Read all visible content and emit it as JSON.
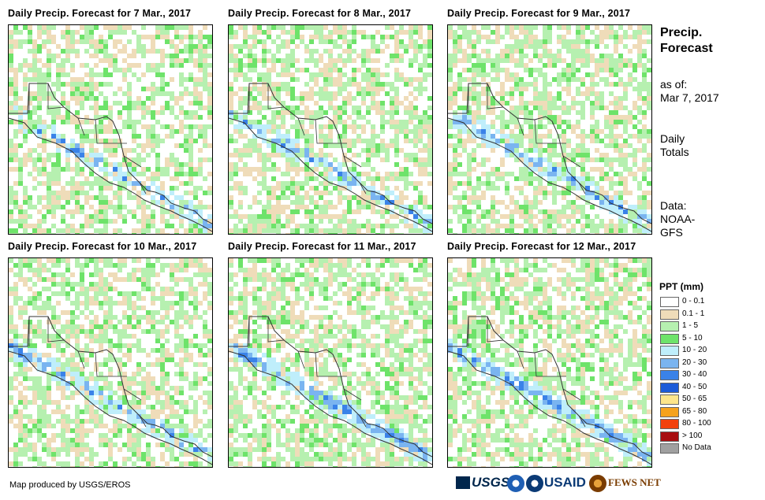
{
  "panels": [
    {
      "title": "Daily Precip. Forecast for 7 Mar., 2017"
    },
    {
      "title": "Daily Precip. Forecast for 8 Mar., 2017"
    },
    {
      "title": "Daily Precip. Forecast for 9 Mar., 2017"
    },
    {
      "title": "Daily Precip. Forecast for 10 Mar., 2017"
    },
    {
      "title": "Daily Precip. Forecast for 11 Mar., 2017"
    },
    {
      "title": "Daily Precip. Forecast for 12 Mar., 2017"
    }
  ],
  "sidebar": {
    "title_line1": "Precip.",
    "title_line2": "Forecast",
    "asof_line1": "as of:",
    "asof_line2": "Mar 7, 2017",
    "totals_line1": "Daily",
    "totals_line2": "Totals",
    "data_line1": "Data:",
    "data_line2": "NOAA-",
    "data_line3": "GFS"
  },
  "legend": {
    "title": "PPT (mm)",
    "items": [
      {
        "label": "0 - 0.1",
        "color": "#ffffff"
      },
      {
        "label": "0.1 - 1",
        "color": "#efdcb9"
      },
      {
        "label": "1 - 5",
        "color": "#b6f0b0"
      },
      {
        "label": "5 - 10",
        "color": "#6ee36a"
      },
      {
        "label": "10 - 20",
        "color": "#bfeefb"
      },
      {
        "label": "20 - 30",
        "color": "#7ab4f0"
      },
      {
        "label": "30 - 40",
        "color": "#3a82e8"
      },
      {
        "label": "40 - 50",
        "color": "#1c5bd8"
      },
      {
        "label": "50 - 65",
        "color": "#fde58a"
      },
      {
        "label": "65 - 80",
        "color": "#f6a21c"
      },
      {
        "label": "80 - 100",
        "color": "#f2400c"
      },
      {
        "label": "> 100",
        "color": "#a80d10"
      },
      {
        "label": "No Data",
        "color": "#a0a0a0"
      }
    ]
  },
  "footer": {
    "credit": "Map produced by USGS/EROS",
    "logo_usgs": "USGS",
    "logo_usaid": "USAID",
    "logo_fews": "FEWS NET"
  }
}
